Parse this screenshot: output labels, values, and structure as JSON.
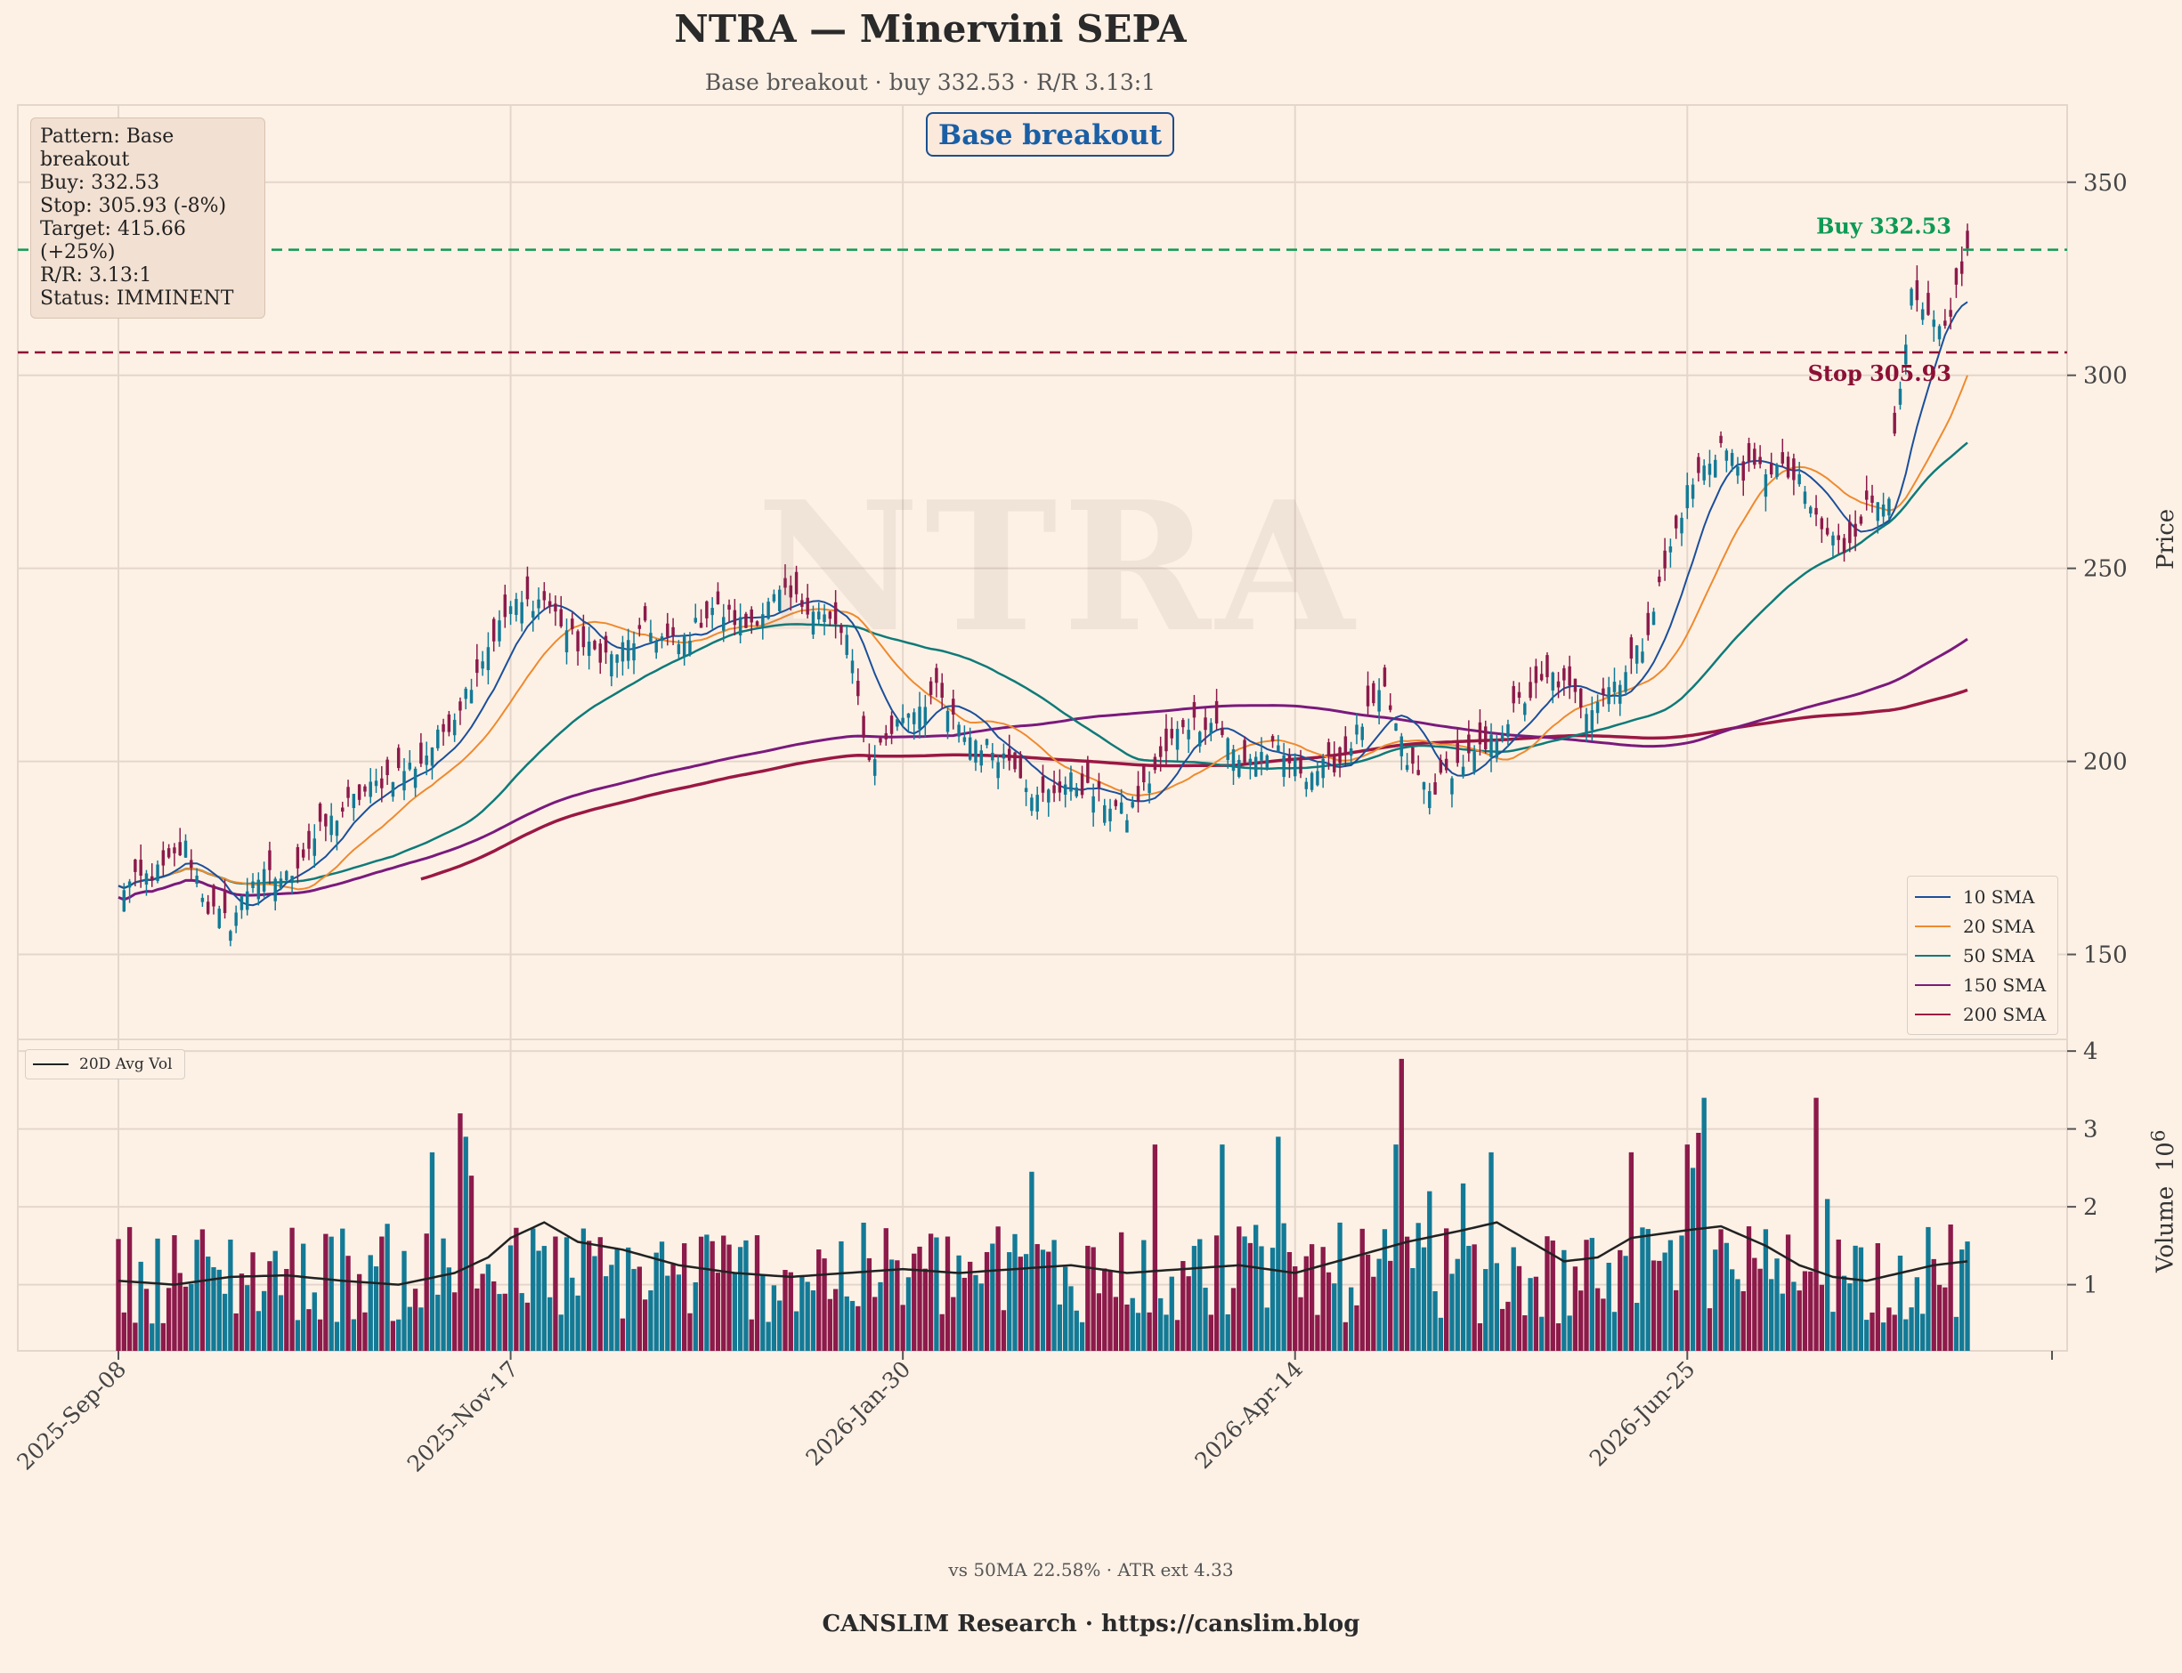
{
  "header": {
    "title": "NTRA — Minervini SEPA",
    "subtitle": "Base breakout · buy 332.53 · R/R 3.13:1"
  },
  "infobox": {
    "lines": [
      "Pattern: Base breakout",
      "Buy: 332.53",
      "Stop: 305.93 (-8%)",
      "Target: 415.66 (+25%)",
      "R/R: 3.13:1",
      "Status: IMMINENT"
    ]
  },
  "pattern_badge": "Base breakout",
  "watermark": "NTRA",
  "levels": {
    "buy": {
      "label": "Buy 332.53",
      "value": 332.53,
      "color": "#0e9a55"
    },
    "stop": {
      "label": "Stop 305.93",
      "value": 305.93,
      "color": "#8c1035"
    }
  },
  "footer": {
    "note": "vs 50MA 22.58% · ATR ext 4.33",
    "brand": "CANSLIM Research  ·  https://canslim.blog"
  },
  "colors": {
    "background": "#fdf1e6",
    "up": "#137a96",
    "down": "#8c1a4a",
    "sma10": "#1b4f9a",
    "sma20": "#ef8a2e",
    "sma50": "#0f7a78",
    "sma150": "#7a1a7c",
    "sma200": "#9b1843",
    "avgvol": "#222222"
  },
  "chart_data": {
    "type": "candlestick",
    "xlabel": "",
    "ylabel": "Price",
    "ylim": [
      128,
      370
    ],
    "yticks": [
      150,
      200,
      250,
      300,
      350
    ],
    "x_tick_labels": [
      "2025-Sep-08",
      "2025-Nov-17",
      "2026-Jan-30",
      "2026-Apr-14",
      "2026-Jun-25"
    ],
    "legend_position": "lower right",
    "legend": [
      "10 SMA",
      "20 SMA",
      "50 SMA",
      "150 SMA",
      "200 SMA"
    ],
    "close_anchors": [
      [
        0,
        167
      ],
      [
        8,
        172
      ],
      [
        12,
        178
      ],
      [
        16,
        162
      ],
      [
        20,
        158
      ],
      [
        24,
        170
      ],
      [
        30,
        170
      ],
      [
        36,
        182
      ],
      [
        42,
        190
      ],
      [
        48,
        196
      ],
      [
        54,
        200
      ],
      [
        60,
        212
      ],
      [
        66,
        230
      ],
      [
        70,
        240
      ],
      [
        76,
        242
      ],
      [
        82,
        230
      ],
      [
        88,
        227
      ],
      [
        94,
        234
      ],
      [
        100,
        230
      ],
      [
        106,
        240
      ],
      [
        112,
        235
      ],
      [
        118,
        243
      ],
      [
        124,
        240
      ],
      [
        130,
        232
      ],
      [
        134,
        200
      ],
      [
        140,
        212
      ],
      [
        146,
        218
      ],
      [
        150,
        208
      ],
      [
        156,
        203
      ],
      [
        160,
        200
      ],
      [
        164,
        190
      ],
      [
        170,
        195
      ],
      [
        176,
        190
      ],
      [
        180,
        186
      ],
      [
        186,
        200
      ],
      [
        190,
        210
      ],
      [
        196,
        210
      ],
      [
        200,
        200
      ],
      [
        206,
        203
      ],
      [
        212,
        197
      ],
      [
        218,
        200
      ],
      [
        222,
        210
      ],
      [
        226,
        218
      ],
      [
        230,
        200
      ],
      [
        234,
        192
      ],
      [
        238,
        198
      ],
      [
        244,
        203
      ],
      [
        250,
        215
      ],
      [
        256,
        222
      ],
      [
        262,
        214
      ],
      [
        268,
        222
      ],
      [
        272,
        230
      ],
      [
        276,
        250
      ],
      [
        280,
        270
      ],
      [
        286,
        282
      ],
      [
        290,
        275
      ],
      [
        296,
        276
      ],
      [
        300,
        272
      ],
      [
        304,
        260
      ],
      [
        308,
        255
      ],
      [
        312,
        266
      ],
      [
        316,
        270
      ],
      [
        320,
        320
      ],
      [
        324,
        312
      ],
      [
        326,
        312
      ],
      [
        328,
        322
      ],
      [
        330,
        332
      ]
    ],
    "volume": {
      "ylabel": "Volume",
      "unit": "10^6",
      "yticks": [
        1,
        2,
        3,
        4
      ],
      "ylim": [
        0.15,
        4.15
      ],
      "legend": [
        "20D Avg Vol"
      ],
      "avg_anchors": [
        [
          0,
          1.05
        ],
        [
          10,
          1.0
        ],
        [
          20,
          1.1
        ],
        [
          30,
          1.12
        ],
        [
          40,
          1.05
        ],
        [
          50,
          1.0
        ],
        [
          60,
          1.15
        ],
        [
          66,
          1.35
        ],
        [
          70,
          1.6
        ],
        [
          76,
          1.8
        ],
        [
          82,
          1.55
        ],
        [
          90,
          1.45
        ],
        [
          100,
          1.25
        ],
        [
          110,
          1.15
        ],
        [
          120,
          1.1
        ],
        [
          130,
          1.15
        ],
        [
          140,
          1.2
        ],
        [
          150,
          1.15
        ],
        [
          160,
          1.2
        ],
        [
          170,
          1.25
        ],
        [
          180,
          1.15
        ],
        [
          190,
          1.2
        ],
        [
          200,
          1.25
        ],
        [
          210,
          1.15
        ],
        [
          220,
          1.35
        ],
        [
          230,
          1.55
        ],
        [
          240,
          1.7
        ],
        [
          246,
          1.8
        ],
        [
          252,
          1.55
        ],
        [
          258,
          1.3
        ],
        [
          264,
          1.35
        ],
        [
          270,
          1.6
        ],
        [
          280,
          1.7
        ],
        [
          286,
          1.75
        ],
        [
          294,
          1.5
        ],
        [
          300,
          1.25
        ],
        [
          306,
          1.1
        ],
        [
          312,
          1.05
        ],
        [
          318,
          1.15
        ],
        [
          324,
          1.25
        ],
        [
          330,
          1.3
        ]
      ],
      "spikes": [
        [
          [
            61,
            3.2
          ],
          [
            62,
            2.9
          ],
          [
            63,
            2.4
          ],
          [
            245,
            2.7
          ],
          [
            303,
            3.4
          ],
          [
            56,
            2.7
          ],
          [
            240,
            2.3
          ],
          [
            280,
            2.8
          ],
          [
            283,
            3.4
          ],
          [
            282,
            2.95
          ],
          [
            207,
            2.9
          ],
          [
            229,
            3.9
          ],
          [
            228,
            2.8
          ],
          [
            163,
            2.45
          ],
          [
            185,
            2.8
          ],
          [
            197,
            2.8
          ],
          [
            281,
            2.5
          ],
          [
            270,
            2.7
          ],
          [
            234,
            2.2
          ],
          [
            305,
            2.1
          ]
        ]
      ]
    }
  }
}
